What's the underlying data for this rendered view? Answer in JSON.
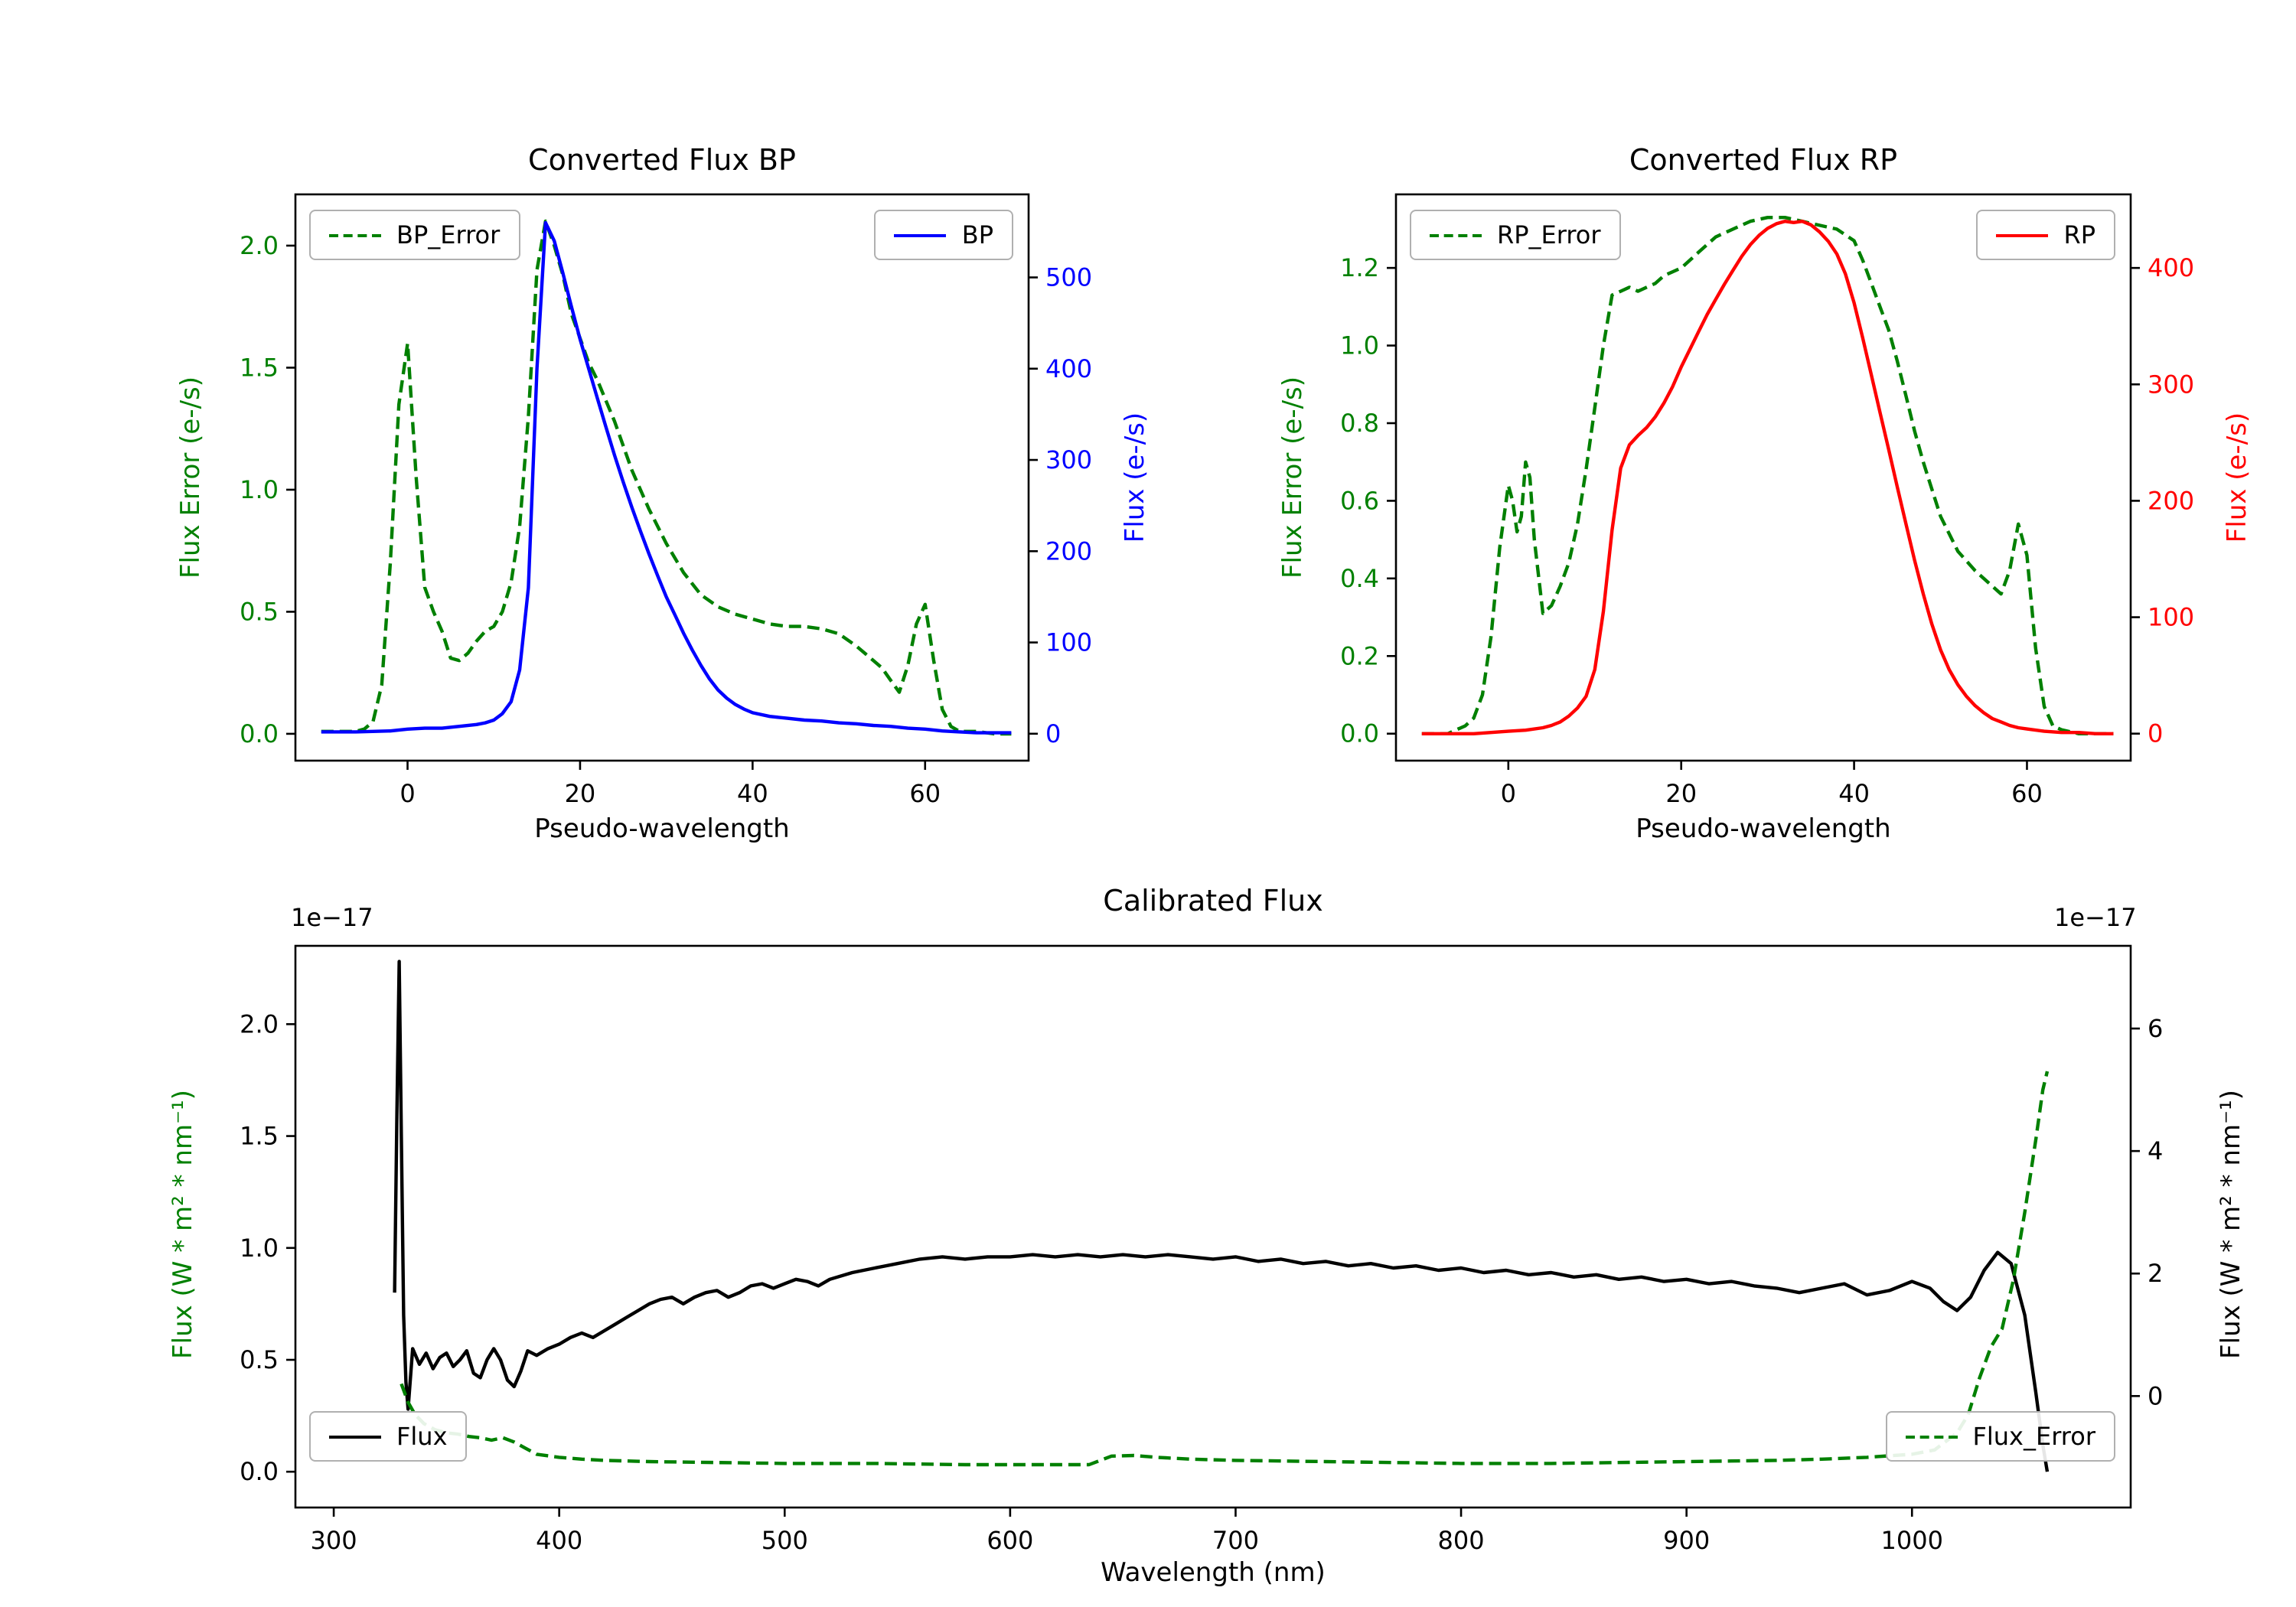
{
  "figure": {
    "background": "#ffffff"
  },
  "chart_data": [
    {
      "type": "line",
      "title": "Converted Flux BP",
      "xlabel": "Pseudo-wavelength",
      "xlim": [
        -13,
        72
      ],
      "xticks": [
        0,
        20,
        40,
        60
      ],
      "xtick_labels": [
        "0",
        "20",
        "40",
        "60"
      ],
      "legend_positions": [
        "top-left",
        "top-right"
      ],
      "axes": {
        "left": {
          "label": "Flux Error (e-/s)",
          "color": "#008000",
          "tick_color": "#008000",
          "lim": [
            -0.11,
            2.21
          ],
          "ticks": [
            0.0,
            0.5,
            1.0,
            1.5,
            2.0
          ],
          "tick_labels": [
            "0.0",
            "0.5",
            "1.0",
            "1.5",
            "2.0"
          ]
        },
        "right": {
          "label": "Flux (e-/s)",
          "color": "#0000ff",
          "tick_color": "#0000ff",
          "lim": [
            -29.5,
            591
          ],
          "ticks": [
            0,
            100,
            200,
            300,
            400,
            500
          ],
          "tick_labels": [
            "0",
            "100",
            "200",
            "300",
            "400",
            "500"
          ]
        }
      },
      "series": [
        {
          "name": "BP_Error",
          "axis": "left",
          "color": "#008000",
          "dash": true,
          "x": [
            -10,
            -8,
            -6,
            -5,
            -4,
            -3,
            -2,
            -1,
            0,
            1,
            2,
            3,
            4,
            5,
            6,
            7,
            8,
            9,
            10,
            11,
            12,
            13,
            14,
            15,
            16,
            17,
            18,
            19,
            20,
            21,
            22,
            24,
            26,
            28,
            30,
            32,
            34,
            36,
            38,
            40,
            42,
            44,
            46,
            48,
            50,
            52,
            54,
            55,
            56,
            57,
            58,
            59,
            60,
            61,
            62,
            63,
            64,
            66,
            68,
            70
          ],
          "y": [
            0.01,
            0.01,
            0.01,
            0.02,
            0.05,
            0.2,
            0.7,
            1.35,
            1.6,
            1.05,
            0.6,
            0.5,
            0.42,
            0.31,
            0.3,
            0.33,
            0.38,
            0.42,
            0.44,
            0.5,
            0.62,
            0.85,
            1.3,
            1.9,
            2.1,
            2.0,
            1.88,
            1.72,
            1.62,
            1.52,
            1.45,
            1.28,
            1.08,
            0.92,
            0.78,
            0.66,
            0.57,
            0.52,
            0.49,
            0.47,
            0.45,
            0.44,
            0.44,
            0.43,
            0.41,
            0.36,
            0.3,
            0.27,
            0.22,
            0.17,
            0.28,
            0.45,
            0.53,
            0.3,
            0.1,
            0.03,
            0.01,
            0.01,
            0.0,
            0.0
          ]
        },
        {
          "name": "BP",
          "axis": "right",
          "color": "#0000ff",
          "dash": false,
          "x": [
            -10,
            -6,
            -2,
            0,
            2,
            4,
            6,
            8,
            9,
            10,
            11,
            12,
            13,
            14,
            15,
            16,
            17,
            18,
            19,
            20,
            21,
            22,
            23,
            24,
            25,
            26,
            27,
            28,
            29,
            30,
            31,
            32,
            33,
            34,
            35,
            36,
            37,
            38,
            39,
            40,
            42,
            44,
            46,
            48,
            50,
            52,
            54,
            56,
            58,
            60,
            62,
            64,
            66,
            68,
            70
          ],
          "y": [
            2,
            2,
            3,
            5,
            6,
            6,
            8,
            10,
            12,
            15,
            22,
            35,
            70,
            160,
            400,
            560,
            540,
            505,
            468,
            432,
            400,
            368,
            336,
            305,
            276,
            248,
            222,
            197,
            173,
            150,
            130,
            110,
            92,
            75,
            60,
            48,
            39,
            32,
            27,
            23,
            19,
            17,
            15,
            14,
            12,
            11,
            9,
            8,
            6,
            5,
            3,
            2,
            1,
            1,
            1
          ]
        }
      ]
    },
    {
      "type": "line",
      "title": "Converted Flux RP",
      "xlabel": "Pseudo-wavelength",
      "xlim": [
        -13,
        72
      ],
      "xticks": [
        0,
        20,
        40,
        60
      ],
      "xtick_labels": [
        "0",
        "20",
        "40",
        "60"
      ],
      "legend_positions": [
        "top-left",
        "top-right"
      ],
      "axes": {
        "left": {
          "label": "Flux Error (e-/s)",
          "color": "#008000",
          "tick_color": "#008000",
          "lim": [
            -0.0695,
            1.3895
          ],
          "ticks": [
            0.0,
            0.2,
            0.4,
            0.6,
            0.8,
            1.0,
            1.2
          ],
          "tick_labels": [
            "0.0",
            "0.2",
            "0.4",
            "0.6",
            "0.8",
            "1.0",
            "1.2"
          ]
        },
        "right": {
          "label": "Flux (e-/s)",
          "color": "#ff0000",
          "tick_color": "#ff0000",
          "lim": [
            -23.2,
            463.2
          ],
          "ticks": [
            0,
            100,
            200,
            300,
            400
          ],
          "tick_labels": [
            "0",
            "100",
            "200",
            "300",
            "400"
          ]
        }
      },
      "series": [
        {
          "name": "RP_Error",
          "axis": "left",
          "color": "#008000",
          "dash": true,
          "x": [
            -10,
            -7,
            -6,
            -5,
            -4,
            -3,
            -2,
            -1,
            0,
            0.5,
            1,
            1.5,
            2,
            2.5,
            3,
            4,
            5,
            6,
            7,
            8,
            9,
            10,
            11,
            12,
            13,
            14,
            15,
            16,
            17,
            18,
            19,
            20,
            22,
            24,
            26,
            28,
            30,
            32,
            34,
            36,
            38,
            40,
            41,
            42,
            43,
            44,
            45,
            46,
            47,
            48,
            49,
            50,
            52,
            54,
            56,
            57,
            58,
            59,
            60,
            61,
            62,
            63,
            64,
            66,
            68,
            70
          ],
          "y": [
            0.0,
            0.0,
            0.01,
            0.02,
            0.04,
            0.1,
            0.25,
            0.48,
            0.64,
            0.6,
            0.52,
            0.56,
            0.7,
            0.66,
            0.5,
            0.31,
            0.33,
            0.38,
            0.44,
            0.54,
            0.68,
            0.84,
            1.0,
            1.13,
            1.14,
            1.15,
            1.14,
            1.15,
            1.16,
            1.18,
            1.19,
            1.2,
            1.24,
            1.28,
            1.3,
            1.32,
            1.33,
            1.33,
            1.32,
            1.31,
            1.3,
            1.27,
            1.22,
            1.16,
            1.1,
            1.04,
            0.96,
            0.87,
            0.78,
            0.7,
            0.63,
            0.56,
            0.47,
            0.42,
            0.38,
            0.36,
            0.42,
            0.54,
            0.46,
            0.22,
            0.07,
            0.02,
            0.01,
            0.0,
            0.0,
            0.0
          ]
        },
        {
          "name": "RP",
          "axis": "right",
          "color": "#ff0000",
          "dash": false,
          "x": [
            -10,
            -4,
            -2,
            0,
            2,
            4,
            5,
            6,
            7,
            8,
            9,
            10,
            11,
            12,
            13,
            14,
            15,
            16,
            17,
            18,
            19,
            20,
            21,
            22,
            23,
            24,
            25,
            26,
            27,
            28,
            29,
            30,
            31,
            32,
            33,
            34,
            35,
            36,
            37,
            38,
            39,
            40,
            41,
            42,
            43,
            44,
            45,
            46,
            47,
            48,
            49,
            50,
            51,
            52,
            53,
            54,
            55,
            56,
            57,
            58,
            59,
            60,
            62,
            64,
            66,
            68,
            70
          ],
          "y": [
            0,
            0,
            1,
            2,
            3,
            5,
            7,
            10,
            15,
            22,
            32,
            55,
            105,
            175,
            228,
            248,
            256,
            263,
            272,
            284,
            298,
            315,
            330,
            345,
            360,
            373,
            386,
            398,
            410,
            420,
            428,
            434,
            438,
            440,
            439,
            440,
            437,
            431,
            423,
            412,
            395,
            370,
            340,
            308,
            276,
            244,
            212,
            180,
            149,
            120,
            94,
            72,
            55,
            42,
            32,
            24,
            18,
            13,
            10,
            7,
            5,
            4,
            2,
            1,
            1,
            0,
            0
          ]
        }
      ]
    },
    {
      "type": "line",
      "title": "Calibrated Flux",
      "xlabel": "Wavelength (nm)",
      "offset_left": "1e−17",
      "offset_right": "1e−17",
      "xlim": [
        283,
        1097
      ],
      "xticks": [
        300,
        400,
        500,
        600,
        700,
        800,
        900,
        1000
      ],
      "xtick_labels": [
        "300",
        "400",
        "500",
        "600",
        "700",
        "800",
        "900",
        "1000"
      ],
      "legend_positions": [
        "bottom-left",
        "bottom-right"
      ],
      "axes": {
        "left": {
          "label": "Flux (W * m² * nm⁻¹)",
          "color": "#008000",
          "tick_color": "#000000",
          "lim": [
            -0.16,
            2.35
          ],
          "ticks": [
            0.0,
            0.5,
            1.0,
            1.5,
            2.0
          ],
          "tick_labels": [
            "0.0",
            "0.5",
            "1.0",
            "1.5",
            "2.0"
          ]
        },
        "right": {
          "label": "Flux (W * m² * nm⁻¹)",
          "color": "#000000",
          "tick_color": "#000000",
          "lim": [
            -1.82,
            7.35
          ],
          "ticks": [
            0,
            2,
            4,
            6
          ],
          "tick_labels": [
            "0",
            "2",
            "4",
            "6"
          ]
        }
      },
      "series": [
        {
          "name": "Flux",
          "axis": "left",
          "color": "#000000",
          "dash": false,
          "x": [
            327,
            328,
            329,
            330,
            331,
            332,
            333,
            335,
            338,
            341,
            344,
            347,
            350,
            353,
            356,
            359,
            362,
            365,
            368,
            371,
            374,
            377,
            380,
            383,
            386,
            390,
            395,
            400,
            405,
            410,
            415,
            420,
            425,
            430,
            435,
            440,
            445,
            450,
            455,
            460,
            465,
            470,
            475,
            480,
            485,
            490,
            495,
            500,
            505,
            510,
            515,
            520,
            530,
            540,
            550,
            560,
            570,
            580,
            590,
            600,
            610,
            620,
            630,
            640,
            650,
            660,
            670,
            680,
            690,
            700,
            710,
            720,
            730,
            740,
            750,
            760,
            770,
            780,
            790,
            800,
            810,
            820,
            830,
            840,
            850,
            860,
            870,
            880,
            890,
            900,
            910,
            920,
            930,
            940,
            950,
            960,
            970,
            980,
            990,
            1000,
            1008,
            1014,
            1020,
            1026,
            1032,
            1038,
            1044,
            1050,
            1055,
            1058,
            1060
          ],
          "y": [
            0.8,
            1.6,
            2.28,
            1.5,
            0.7,
            0.4,
            0.28,
            0.55,
            0.48,
            0.53,
            0.46,
            0.51,
            0.53,
            0.47,
            0.5,
            0.54,
            0.44,
            0.42,
            0.5,
            0.55,
            0.5,
            0.41,
            0.38,
            0.45,
            0.54,
            0.52,
            0.55,
            0.57,
            0.6,
            0.62,
            0.6,
            0.63,
            0.66,
            0.69,
            0.72,
            0.75,
            0.77,
            0.78,
            0.75,
            0.78,
            0.8,
            0.81,
            0.78,
            0.8,
            0.83,
            0.84,
            0.82,
            0.84,
            0.86,
            0.85,
            0.83,
            0.86,
            0.89,
            0.91,
            0.93,
            0.95,
            0.96,
            0.95,
            0.96,
            0.96,
            0.97,
            0.96,
            0.97,
            0.96,
            0.97,
            0.96,
            0.97,
            0.96,
            0.95,
            0.96,
            0.94,
            0.95,
            0.93,
            0.94,
            0.92,
            0.93,
            0.91,
            0.92,
            0.9,
            0.91,
            0.89,
            0.9,
            0.88,
            0.89,
            0.87,
            0.88,
            0.86,
            0.87,
            0.85,
            0.86,
            0.84,
            0.85,
            0.83,
            0.82,
            0.8,
            0.82,
            0.84,
            0.79,
            0.81,
            0.85,
            0.82,
            0.76,
            0.72,
            0.78,
            0.9,
            0.98,
            0.93,
            0.7,
            0.35,
            0.12,
            0.0
          ]
        },
        {
          "name": "Flux_Error",
          "axis": "right",
          "color": "#008000",
          "dash": true,
          "x": [
            330,
            333,
            336,
            340,
            345,
            350,
            355,
            360,
            365,
            370,
            375,
            380,
            385,
            390,
            400,
            410,
            420,
            440,
            460,
            480,
            500,
            520,
            540,
            560,
            580,
            600,
            620,
            635,
            645,
            655,
            665,
            680,
            700,
            720,
            740,
            760,
            780,
            800,
            820,
            840,
            860,
            880,
            900,
            920,
            940,
            960,
            980,
            1000,
            1010,
            1020,
            1025,
            1030,
            1035,
            1040,
            1045,
            1050,
            1055,
            1058,
            1060
          ],
          "y": [
            0.2,
            -0.1,
            -0.3,
            -0.45,
            -0.55,
            -0.6,
            -0.62,
            -0.66,
            -0.68,
            -0.72,
            -0.68,
            -0.75,
            -0.85,
            -0.95,
            -1.0,
            -1.03,
            -1.05,
            -1.07,
            -1.08,
            -1.09,
            -1.1,
            -1.1,
            -1.1,
            -1.11,
            -1.12,
            -1.12,
            -1.12,
            -1.12,
            -0.98,
            -0.97,
            -1.0,
            -1.03,
            -1.05,
            -1.06,
            -1.07,
            -1.08,
            -1.09,
            -1.1,
            -1.1,
            -1.1,
            -1.09,
            -1.08,
            -1.07,
            -1.06,
            -1.05,
            -1.03,
            -1.0,
            -0.95,
            -0.88,
            -0.6,
            -0.3,
            0.3,
            0.8,
            1.1,
            1.9,
            3.0,
            4.2,
            5.0,
            5.3
          ]
        }
      ]
    }
  ]
}
